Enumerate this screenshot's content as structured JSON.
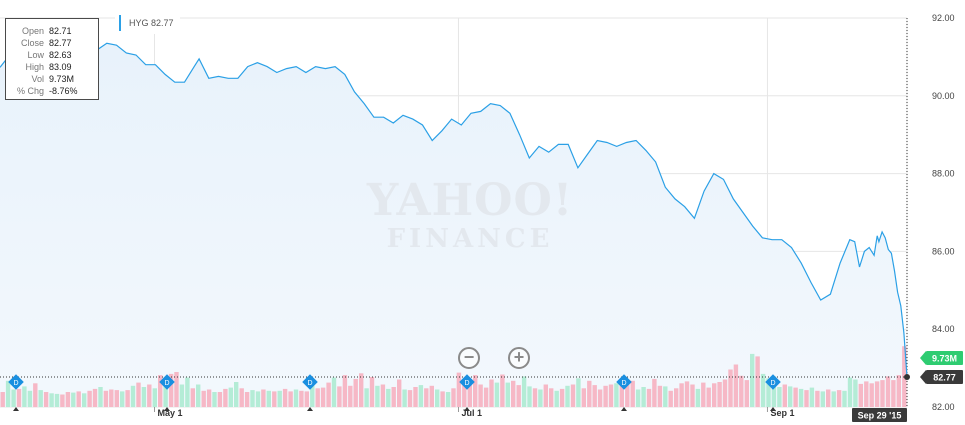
{
  "info": {
    "rows": [
      {
        "k": "Open",
        "v": "82.71"
      },
      {
        "k": "Close",
        "v": "82.77"
      },
      {
        "k": "Low",
        "v": "82.63"
      },
      {
        "k": "High",
        "v": "83.09"
      },
      {
        "k": "Vol",
        "v": "9.73M"
      },
      {
        "k": "% Chg",
        "v": "-8.76%"
      }
    ]
  },
  "legend": {
    "label": "HYG 82.77",
    "color": "#2ba0e6"
  },
  "watermark": {
    "line1": "YAHOO!",
    "line2": "FINANCE"
  },
  "zoom": {
    "out": "−",
    "in": "+"
  },
  "colors": {
    "line": "#2ba0e6",
    "fill": "#eef5fc",
    "vol_up": "#b4ecd6",
    "vol_down": "#f6b8c6",
    "vol_badge": "#2ecc71",
    "price_badge": "#3a3a3a",
    "date_badge": "#3a3a3a",
    "marker": "#1a8fe0"
  },
  "chart_data": {
    "type": "line",
    "symbol": "HYG",
    "y_ticks": [
      "92.00",
      "90.00",
      "88.00",
      "86.00",
      "84.00",
      "82.00"
    ],
    "ylim": [
      82,
      92
    ],
    "x_ticks": [
      {
        "label": "May 1",
        "date": "2015-05-01"
      },
      {
        "label": "Jul 1",
        "date": "2015-07-01"
      },
      {
        "label": "Sep 1",
        "date": "2015-09-01"
      }
    ],
    "xlim": [
      "2015-03-31",
      "2015-09-29"
    ],
    "last_price_label": "82.77",
    "last_volume_label": "9.73M",
    "last_date_label": "Sep 29 '15",
    "dividend_marker_label": "D",
    "dividend_dates": [
      "2015-04-01",
      "2015-05-01",
      "2015-06-01",
      "2015-07-01",
      "2015-08-03",
      "2015-09-01"
    ],
    "series": [
      {
        "values": [
          {
            "x": "2015-03-31",
            "y": 90.73
          },
          {
            "x": "2015-04-02",
            "y": 91.05
          },
          {
            "x": "2015-04-04",
            "y": 91.18
          },
          {
            "x": "2015-04-06",
            "y": 90.78
          },
          {
            "x": "2015-04-08",
            "y": 91.08
          },
          {
            "x": "2015-04-10",
            "y": 91.2
          },
          {
            "x": "2015-04-12",
            "y": 91.18
          },
          {
            "x": "2015-04-14",
            "y": 91.0
          },
          {
            "x": "2015-04-16",
            "y": 91.15
          },
          {
            "x": "2015-04-18",
            "y": 91.1
          },
          {
            "x": "2015-04-20",
            "y": 91.18
          },
          {
            "x": "2015-04-22",
            "y": 91.35
          },
          {
            "x": "2015-04-24",
            "y": 91.3
          },
          {
            "x": "2015-04-26",
            "y": 91.1
          },
          {
            "x": "2015-04-28",
            "y": 91.05
          },
          {
            "x": "2015-04-30",
            "y": 90.8
          },
          {
            "x": "2015-05-02",
            "y": 90.8
          },
          {
            "x": "2015-05-04",
            "y": 90.55
          },
          {
            "x": "2015-05-06",
            "y": 90.35
          },
          {
            "x": "2015-05-08",
            "y": 90.35
          },
          {
            "x": "2015-05-10",
            "y": 90.75
          },
          {
            "x": "2015-05-11",
            "y": 90.95
          },
          {
            "x": "2015-05-13",
            "y": 90.45
          },
          {
            "x": "2015-05-15",
            "y": 90.5
          },
          {
            "x": "2015-05-17",
            "y": 90.45
          },
          {
            "x": "2015-05-19",
            "y": 90.45
          },
          {
            "x": "2015-05-21",
            "y": 90.75
          },
          {
            "x": "2015-05-23",
            "y": 90.85
          },
          {
            "x": "2015-05-25",
            "y": 90.75
          },
          {
            "x": "2015-05-27",
            "y": 90.6
          },
          {
            "x": "2015-05-29",
            "y": 90.7
          },
          {
            "x": "2015-05-31",
            "y": 90.75
          },
          {
            "x": "2015-06-02",
            "y": 90.6
          },
          {
            "x": "2015-06-04",
            "y": 90.75
          },
          {
            "x": "2015-06-06",
            "y": 90.7
          },
          {
            "x": "2015-06-08",
            "y": 90.75
          },
          {
            "x": "2015-06-10",
            "y": 90.55
          },
          {
            "x": "2015-06-12",
            "y": 90.1
          },
          {
            "x": "2015-06-14",
            "y": 89.8
          },
          {
            "x": "2015-06-16",
            "y": 89.45
          },
          {
            "x": "2015-06-18",
            "y": 89.45
          },
          {
            "x": "2015-06-20",
            "y": 89.3
          },
          {
            "x": "2015-06-22",
            "y": 89.5
          },
          {
            "x": "2015-06-24",
            "y": 89.4
          },
          {
            "x": "2015-06-26",
            "y": 89.25
          },
          {
            "x": "2015-06-28",
            "y": 88.85
          },
          {
            "x": "2015-06-30",
            "y": 89.1
          },
          {
            "x": "2015-07-02",
            "y": 89.4
          },
          {
            "x": "2015-07-04",
            "y": 89.25
          },
          {
            "x": "2015-07-06",
            "y": 89.55
          },
          {
            "x": "2015-07-08",
            "y": 89.6
          },
          {
            "x": "2015-07-10",
            "y": 89.8
          },
          {
            "x": "2015-07-12",
            "y": 89.75
          },
          {
            "x": "2015-07-14",
            "y": 89.55
          },
          {
            "x": "2015-07-16",
            "y": 89.0
          },
          {
            "x": "2015-07-18",
            "y": 88.4
          },
          {
            "x": "2015-07-20",
            "y": 88.7
          },
          {
            "x": "2015-07-22",
            "y": 88.55
          },
          {
            "x": "2015-07-24",
            "y": 88.75
          },
          {
            "x": "2015-07-26",
            "y": 88.75
          },
          {
            "x": "2015-07-28",
            "y": 88.15
          },
          {
            "x": "2015-07-30",
            "y": 88.5
          },
          {
            "x": "2015-08-01",
            "y": 88.85
          },
          {
            "x": "2015-08-03",
            "y": 88.8
          },
          {
            "x": "2015-08-05",
            "y": 88.7
          },
          {
            "x": "2015-08-07",
            "y": 88.8
          },
          {
            "x": "2015-08-09",
            "y": 88.85
          },
          {
            "x": "2015-08-11",
            "y": 88.6
          },
          {
            "x": "2015-08-13",
            "y": 88.3
          },
          {
            "x": "2015-08-15",
            "y": 87.65
          },
          {
            "x": "2015-08-17",
            "y": 87.35
          },
          {
            "x": "2015-08-19",
            "y": 87.15
          },
          {
            "x": "2015-08-21",
            "y": 86.85
          },
          {
            "x": "2015-08-23",
            "y": 87.55
          },
          {
            "x": "2015-08-25",
            "y": 88.0
          },
          {
            "x": "2015-08-27",
            "y": 87.85
          },
          {
            "x": "2015-08-29",
            "y": 87.35
          },
          {
            "x": "2015-08-31",
            "y": 87.0
          },
          {
            "x": "2015-09-02",
            "y": 86.65
          },
          {
            "x": "2015-09-04",
            "y": 86.35
          },
          {
            "x": "2015-09-06",
            "y": 86.3
          },
          {
            "x": "2015-09-08",
            "y": 86.3
          },
          {
            "x": "2015-09-10",
            "y": 86.1
          },
          {
            "x": "2015-09-12",
            "y": 85.7
          },
          {
            "x": "2015-09-14",
            "y": 85.2
          },
          {
            "x": "2015-09-16",
            "y": 84.75
          },
          {
            "x": "2015-09-18",
            "y": 84.9
          },
          {
            "x": "2015-09-20",
            "y": 85.7
          },
          {
            "x": "2015-09-22",
            "y": 86.3
          },
          {
            "x": "2015-09-23",
            "y": 86.25
          },
          {
            "x": "2015-09-24",
            "y": 85.6
          },
          {
            "x": "2015-09-25",
            "y": 86.0
          },
          {
            "x": "2015-09-26",
            "y": 86.1
          },
          {
            "x": "2015-09-27",
            "y": 85.9
          },
          {
            "x": "2015-09-27",
            "y": 86.4
          },
          {
            "x": "2015-09-28",
            "y": 86.25
          },
          {
            "x": "2015-09-28",
            "y": 86.5
          },
          {
            "x": "2015-09-28",
            "y": 86.35
          },
          {
            "x": "2015-09-28",
            "y": 86.05
          },
          {
            "x": "2015-09-28",
            "y": 85.95
          },
          {
            "x": "2015-09-28",
            "y": 85.5
          },
          {
            "x": "2015-09-28",
            "y": 84.95
          },
          {
            "x": "2015-09-29",
            "y": 84.6
          },
          {
            "x": "2015-09-29",
            "y": 83.9
          },
          {
            "x": "2015-09-29",
            "y": 82.77
          }
        ]
      }
    ],
    "volume": [
      {
        "v": 2.4,
        "up": false
      },
      {
        "v": 4.2,
        "up": true
      },
      {
        "v": 2.8,
        "up": true
      },
      {
        "v": 2.9,
        "up": false
      },
      {
        "v": 3.3,
        "up": true
      },
      {
        "v": 2.6,
        "up": true
      },
      {
        "v": 3.8,
        "up": false
      },
      {
        "v": 2.7,
        "up": true
      },
      {
        "v": 2.4,
        "up": false
      },
      {
        "v": 2.2,
        "up": true
      },
      {
        "v": 2.1,
        "up": true
      },
      {
        "v": 2.0,
        "up": false
      },
      {
        "v": 2.4,
        "up": false
      },
      {
        "v": 2.3,
        "up": true
      },
      {
        "v": 2.5,
        "up": false
      },
      {
        "v": 2.2,
        "up": true
      },
      {
        "v": 2.6,
        "up": false
      },
      {
        "v": 2.9,
        "up": false
      },
      {
        "v": 3.2,
        "up": true
      },
      {
        "v": 2.6,
        "up": false
      },
      {
        "v": 2.8,
        "up": false
      },
      {
        "v": 2.7,
        "up": false
      },
      {
        "v": 2.5,
        "up": true
      },
      {
        "v": 2.7,
        "up": false
      },
      {
        "v": 3.4,
        "up": true
      },
      {
        "v": 3.9,
        "up": false
      },
      {
        "v": 3.2,
        "up": true
      },
      {
        "v": 3.6,
        "up": false
      },
      {
        "v": 3.0,
        "up": true
      },
      {
        "v": 5.1,
        "up": false
      },
      {
        "v": 4.4,
        "up": true
      },
      {
        "v": 5.3,
        "up": false
      },
      {
        "v": 5.6,
        "up": false
      },
      {
        "v": 3.6,
        "up": true
      },
      {
        "v": 4.7,
        "up": true
      },
      {
        "v": 3.0,
        "up": false
      },
      {
        "v": 3.6,
        "up": true
      },
      {
        "v": 2.6,
        "up": false
      },
      {
        "v": 2.8,
        "up": false
      },
      {
        "v": 2.4,
        "up": true
      },
      {
        "v": 2.4,
        "up": false
      },
      {
        "v": 2.9,
        "up": false
      },
      {
        "v": 3.1,
        "up": true
      },
      {
        "v": 4.0,
        "up": true
      },
      {
        "v": 3.0,
        "up": false
      },
      {
        "v": 2.4,
        "up": false
      },
      {
        "v": 2.7,
        "up": true
      },
      {
        "v": 2.5,
        "up": true
      },
      {
        "v": 2.8,
        "up": false
      },
      {
        "v": 2.6,
        "up": true
      },
      {
        "v": 2.5,
        "up": false
      },
      {
        "v": 2.6,
        "up": true
      },
      {
        "v": 2.9,
        "up": false
      },
      {
        "v": 2.5,
        "up": false
      },
      {
        "v": 2.8,
        "up": true
      },
      {
        "v": 2.6,
        "up": false
      },
      {
        "v": 2.5,
        "up": false
      },
      {
        "v": 3.6,
        "up": true
      },
      {
        "v": 3.0,
        "up": false
      },
      {
        "v": 3.1,
        "up": false
      },
      {
        "v": 3.9,
        "up": false
      },
      {
        "v": 4.7,
        "up": true
      },
      {
        "v": 3.3,
        "up": false
      },
      {
        "v": 5.1,
        "up": false
      },
      {
        "v": 3.4,
        "up": false
      },
      {
        "v": 4.5,
        "up": false
      },
      {
        "v": 5.4,
        "up": false
      },
      {
        "v": 3.0,
        "up": true
      },
      {
        "v": 4.8,
        "up": false
      },
      {
        "v": 3.4,
        "up": true
      },
      {
        "v": 3.6,
        "up": false
      },
      {
        "v": 2.9,
        "up": true
      },
      {
        "v": 3.2,
        "up": false
      },
      {
        "v": 4.4,
        "up": false
      },
      {
        "v": 2.8,
        "up": true
      },
      {
        "v": 2.7,
        "up": false
      },
      {
        "v": 3.2,
        "up": false
      },
      {
        "v": 3.5,
        "up": true
      },
      {
        "v": 3.0,
        "up": false
      },
      {
        "v": 3.4,
        "up": false
      },
      {
        "v": 2.8,
        "up": true
      },
      {
        "v": 2.5,
        "up": false
      },
      {
        "v": 2.4,
        "up": true
      },
      {
        "v": 3.0,
        "up": false
      },
      {
        "v": 5.5,
        "up": false
      },
      {
        "v": 4.0,
        "up": false
      },
      {
        "v": 3.8,
        "up": false
      },
      {
        "v": 5.1,
        "up": false
      },
      {
        "v": 3.6,
        "up": false
      },
      {
        "v": 3.1,
        "up": false
      },
      {
        "v": 4.4,
        "up": false
      },
      {
        "v": 3.9,
        "up": true
      },
      {
        "v": 5.2,
        "up": false
      },
      {
        "v": 3.9,
        "up": true
      },
      {
        "v": 4.2,
        "up": false
      },
      {
        "v": 3.5,
        "up": false
      },
      {
        "v": 4.9,
        "up": true
      },
      {
        "v": 3.3,
        "up": true
      },
      {
        "v": 3.0,
        "up": false
      },
      {
        "v": 2.8,
        "up": true
      },
      {
        "v": 3.6,
        "up": false
      },
      {
        "v": 3.0,
        "up": false
      },
      {
        "v": 2.6,
        "up": true
      },
      {
        "v": 2.9,
        "up": false
      },
      {
        "v": 3.4,
        "up": true
      },
      {
        "v": 3.6,
        "up": false
      },
      {
        "v": 4.6,
        "up": true
      },
      {
        "v": 3.0,
        "up": false
      },
      {
        "v": 4.2,
        "up": false
      },
      {
        "v": 3.5,
        "up": false
      },
      {
        "v": 2.8,
        "up": false
      },
      {
        "v": 3.4,
        "up": false
      },
      {
        "v": 3.6,
        "up": false
      },
      {
        "v": 3.8,
        "up": true
      },
      {
        "v": 4.2,
        "up": false
      },
      {
        "v": 3.7,
        "up": false
      },
      {
        "v": 4.2,
        "up": false
      },
      {
        "v": 2.8,
        "up": true
      },
      {
        "v": 3.2,
        "up": true
      },
      {
        "v": 2.9,
        "up": false
      },
      {
        "v": 4.5,
        "up": false
      },
      {
        "v": 3.4,
        "up": false
      },
      {
        "v": 3.3,
        "up": true
      },
      {
        "v": 2.6,
        "up": false
      },
      {
        "v": 3.0,
        "up": false
      },
      {
        "v": 3.8,
        "up": false
      },
      {
        "v": 4.1,
        "up": false
      },
      {
        "v": 3.6,
        "up": false
      },
      {
        "v": 2.9,
        "up": true
      },
      {
        "v": 3.9,
        "up": false
      },
      {
        "v": 3.1,
        "up": false
      },
      {
        "v": 3.8,
        "up": false
      },
      {
        "v": 4.0,
        "up": false
      },
      {
        "v": 4.4,
        "up": false
      },
      {
        "v": 6.0,
        "up": false
      },
      {
        "v": 6.8,
        "up": false
      },
      {
        "v": 5.0,
        "up": false
      },
      {
        "v": 4.3,
        "up": false
      },
      {
        "v": 8.5,
        "up": true
      },
      {
        "v": 8.1,
        "up": false
      },
      {
        "v": 5.3,
        "up": true
      },
      {
        "v": 4.6,
        "up": true
      },
      {
        "v": 4.9,
        "up": true
      },
      {
        "v": 3.2,
        "up": true
      },
      {
        "v": 3.6,
        "up": false
      },
      {
        "v": 3.3,
        "up": true
      },
      {
        "v": 3.1,
        "up": false
      },
      {
        "v": 2.9,
        "up": true
      },
      {
        "v": 2.7,
        "up": false
      },
      {
        "v": 3.1,
        "up": true
      },
      {
        "v": 2.6,
        "up": false
      },
      {
        "v": 2.5,
        "up": true
      },
      {
        "v": 2.8,
        "up": false
      },
      {
        "v": 2.5,
        "up": true
      },
      {
        "v": 2.7,
        "up": false
      },
      {
        "v": 2.6,
        "up": true
      },
      {
        "v": 4.7,
        "up": true
      },
      {
        "v": 4.4,
        "up": true
      },
      {
        "v": 3.7,
        "up": false
      },
      {
        "v": 4.1,
        "up": false
      },
      {
        "v": 3.8,
        "up": false
      },
      {
        "v": 4.1,
        "up": false
      },
      {
        "v": 4.3,
        "up": false
      },
      {
        "v": 4.9,
        "up": false
      },
      {
        "v": 4.3,
        "up": false
      },
      {
        "v": 5.1,
        "up": false
      },
      {
        "v": 9.73,
        "up": false
      }
    ],
    "volume_max": 16
  }
}
